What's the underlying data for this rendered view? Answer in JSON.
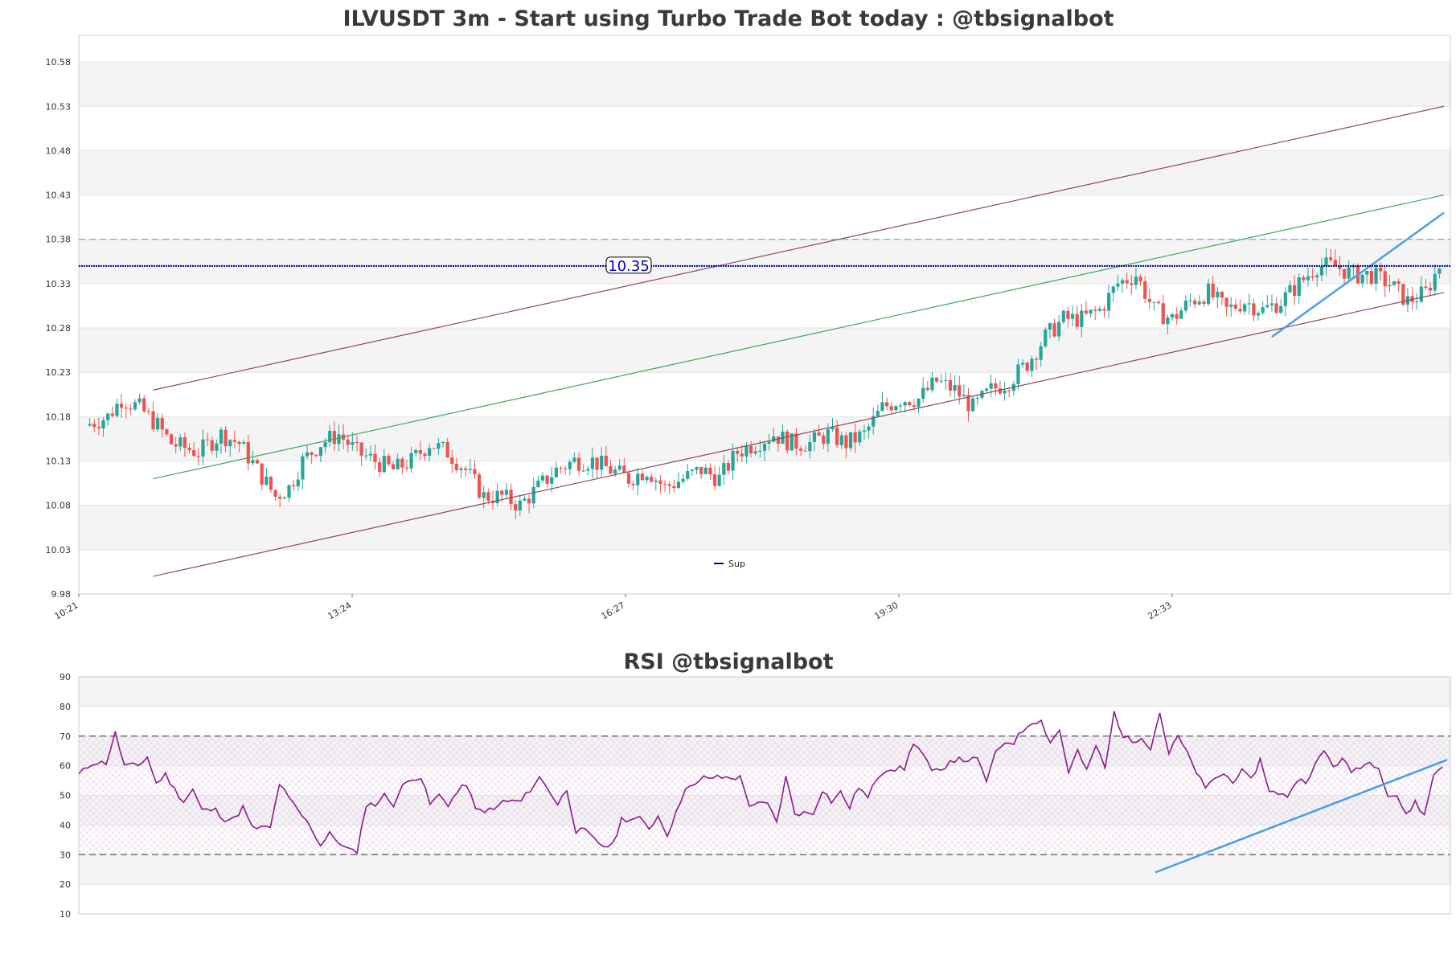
{
  "chart_data": [
    {
      "type": "candlestick",
      "title": "ILVUSDT 3m - Start using Turbo Trade Bot today : @tbsignalbot",
      "ylim": [
        9.98,
        10.61
      ],
      "y_ticks": [
        "9.98",
        "10.03",
        "10.08",
        "10.13",
        "10.18",
        "10.23",
        "10.28",
        "10.33",
        "10.38",
        "10.43",
        "10.48",
        "10.53",
        "10.58"
      ],
      "x_ticks": [
        "10:21",
        "13:24",
        "16:27",
        "19:30",
        "22:33"
      ],
      "n_candles": 300,
      "candle_up_color": "#26a69a",
      "candle_down_color": "#ef5350",
      "close_path": [
        [
          0,
          10.17
        ],
        [
          5,
          10.18
        ],
        [
          8,
          10.2
        ],
        [
          12,
          10.19
        ],
        [
          16,
          10.17
        ],
        [
          19,
          10.15
        ],
        [
          25,
          10.14
        ],
        [
          30,
          10.16
        ],
        [
          34,
          10.15
        ],
        [
          38,
          10.12
        ],
        [
          42,
          10.09
        ],
        [
          45,
          10.1
        ],
        [
          48,
          10.13
        ],
        [
          52,
          10.15
        ],
        [
          56,
          10.16
        ],
        [
          60,
          10.14
        ],
        [
          64,
          10.13
        ],
        [
          68,
          10.12
        ],
        [
          72,
          10.13
        ],
        [
          76,
          10.15
        ],
        [
          80,
          10.14
        ],
        [
          84,
          10.12
        ],
        [
          88,
          10.09
        ],
        [
          92,
          10.09
        ],
        [
          96,
          10.08
        ],
        [
          100,
          10.1
        ],
        [
          104,
          10.12
        ],
        [
          108,
          10.13
        ],
        [
          112,
          10.13
        ],
        [
          116,
          10.12
        ],
        [
          120,
          10.11
        ],
        [
          124,
          10.12
        ],
        [
          128,
          10.1
        ],
        [
          132,
          10.11
        ],
        [
          136,
          10.12
        ],
        [
          140,
          10.11
        ],
        [
          144,
          10.14
        ],
        [
          148,
          10.15
        ],
        [
          152,
          10.16
        ],
        [
          156,
          10.15
        ],
        [
          160,
          10.15
        ],
        [
          164,
          10.16
        ],
        [
          168,
          10.15
        ],
        [
          172,
          10.16
        ],
        [
          176,
          10.19
        ],
        [
          180,
          10.2
        ],
        [
          184,
          10.2
        ],
        [
          188,
          10.22
        ],
        [
          192,
          10.21
        ],
        [
          196,
          10.19
        ],
        [
          200,
          10.21
        ],
        [
          204,
          10.22
        ],
        [
          208,
          10.24
        ],
        [
          212,
          10.27
        ],
        [
          216,
          10.29
        ],
        [
          220,
          10.29
        ],
        [
          224,
          10.3
        ],
        [
          228,
          10.33
        ],
        [
          232,
          10.34
        ],
        [
          236,
          10.3
        ],
        [
          240,
          10.29
        ],
        [
          244,
          10.31
        ],
        [
          248,
          10.32
        ],
        [
          252,
          10.3
        ],
        [
          256,
          10.31
        ],
        [
          260,
          10.3
        ],
        [
          264,
          10.31
        ],
        [
          268,
          10.33
        ],
        [
          272,
          10.35
        ],
        [
          276,
          10.35
        ],
        [
          280,
          10.34
        ],
        [
          284,
          10.34
        ],
        [
          288,
          10.33
        ],
        [
          292,
          10.31
        ],
        [
          296,
          10.32
        ],
        [
          300,
          10.36
        ]
      ],
      "series": [
        {
          "name": "Sup",
          "value": 10.35,
          "color": "#00008b",
          "style": "solid",
          "label": "10.35"
        },
        {
          "name": "resistance_dashed",
          "value": 10.38,
          "color": "#5ab4d6",
          "style": "dashed"
        }
      ],
      "channel_lines": [
        {
          "name": "channel-upper",
          "color": "#8b4a5a",
          "from": [
            15,
            10.21
          ],
          "to": [
            300,
            10.53
          ]
        },
        {
          "name": "channel-middle",
          "color": "#3aa85a",
          "from": [
            15,
            10.11
          ],
          "to": [
            300,
            10.43
          ]
        },
        {
          "name": "channel-lower",
          "color": "#8b4a5a",
          "from": [
            15,
            10.0
          ],
          "to": [
            300,
            10.32
          ]
        },
        {
          "name": "trend-blue",
          "color": "#4a9ee6",
          "from": [
            262,
            10.27
          ],
          "to": [
            300,
            10.41
          ]
        }
      ],
      "legend": {
        "entries": [
          "Sup"
        ],
        "position": "bottom-center"
      }
    },
    {
      "type": "line",
      "title": "RSI @tbsignalbot",
      "ylim": [
        10,
        90
      ],
      "y_ticks": [
        "10",
        "20",
        "30",
        "40",
        "50",
        "60",
        "70",
        "80",
        "90"
      ],
      "reference_lines": [
        70,
        30
      ],
      "n_points": 300,
      "line_color": "#8b1a8b",
      "rsi_path": [
        [
          0,
          57
        ],
        [
          3,
          61
        ],
        [
          6,
          61
        ],
        [
          8,
          71
        ],
        [
          10,
          60
        ],
        [
          13,
          60
        ],
        [
          15,
          63
        ],
        [
          17,
          54
        ],
        [
          19,
          57
        ],
        [
          21,
          52
        ],
        [
          23,
          48
        ],
        [
          25,
          52
        ],
        [
          27,
          45
        ],
        [
          30,
          45
        ],
        [
          32,
          42
        ],
        [
          34,
          42
        ],
        [
          36,
          46
        ],
        [
          38,
          39
        ],
        [
          42,
          39
        ],
        [
          44,
          54
        ],
        [
          46,
          49
        ],
        [
          49,
          43
        ],
        [
          51,
          39
        ],
        [
          53,
          33
        ],
        [
          55,
          38
        ],
        [
          57,
          33
        ],
        [
          59,
          33
        ],
        [
          61,
          30
        ],
        [
          63,
          47
        ],
        [
          65,
          47
        ],
        [
          67,
          50
        ],
        [
          69,
          47
        ],
        [
          71,
          53
        ],
        [
          73,
          56
        ],
        [
          75,
          56
        ],
        [
          77,
          47
        ],
        [
          79,
          50
        ],
        [
          81,
          47
        ],
        [
          83,
          51
        ],
        [
          85,
          54
        ],
        [
          87,
          45
        ],
        [
          91,
          45
        ],
        [
          93,
          48
        ],
        [
          97,
          48
        ],
        [
          99,
          52
        ],
        [
          101,
          56
        ],
        [
          103,
          52
        ],
        [
          105,
          47
        ],
        [
          107,
          52
        ],
        [
          109,
          38
        ],
        [
          111,
          38
        ],
        [
          113,
          35
        ],
        [
          115,
          33
        ],
        [
          117,
          33
        ],
        [
          119,
          42
        ],
        [
          123,
          42
        ],
        [
          125,
          39
        ],
        [
          127,
          43
        ],
        [
          129,
          37
        ],
        [
          131,
          44
        ],
        [
          133,
          53
        ],
        [
          135,
          53
        ],
        [
          137,
          56
        ],
        [
          145,
          56
        ],
        [
          147,
          47
        ],
        [
          151,
          47
        ],
        [
          153,
          41
        ],
        [
          155,
          56
        ],
        [
          157,
          44
        ],
        [
          161,
          44
        ],
        [
          163,
          52
        ],
        [
          165,
          48
        ],
        [
          167,
          51
        ],
        [
          169,
          46
        ],
        [
          171,
          53
        ],
        [
          173,
          49
        ],
        [
          175,
          56
        ],
        [
          177,
          59
        ],
        [
          181,
          59
        ],
        [
          183,
          68
        ],
        [
          185,
          64
        ],
        [
          187,
          58
        ],
        [
          189,
          58
        ],
        [
          191,
          62
        ],
        [
          197,
          62
        ],
        [
          199,
          55
        ],
        [
          201,
          64
        ],
        [
          203,
          68
        ],
        [
          205,
          68
        ],
        [
          207,
          72
        ],
        [
          209,
          75
        ],
        [
          211,
          75
        ],
        [
          213,
          68
        ],
        [
          215,
          72
        ],
        [
          217,
          58
        ],
        [
          219,
          65
        ],
        [
          221,
          58
        ],
        [
          223,
          67
        ],
        [
          225,
          59
        ],
        [
          227,
          78
        ],
        [
          229,
          70
        ],
        [
          231,
          68
        ],
        [
          233,
          70
        ],
        [
          235,
          66
        ],
        [
          237,
          78
        ],
        [
          239,
          64
        ],
        [
          241,
          70
        ],
        [
          243,
          64
        ],
        [
          245,
          58
        ],
        [
          247,
          52
        ],
        [
          249,
          56
        ],
        [
          251,
          57
        ],
        [
          253,
          55
        ],
        [
          255,
          58
        ],
        [
          257,
          55
        ],
        [
          259,
          62
        ],
        [
          261,
          52
        ],
        [
          263,
          50
        ],
        [
          265,
          50
        ],
        [
          267,
          55
        ],
        [
          269,
          55
        ],
        [
          271,
          60
        ],
        [
          273,
          65
        ],
        [
          275,
          60
        ],
        [
          277,
          62
        ],
        [
          279,
          58
        ],
        [
          281,
          60
        ],
        [
          283,
          61
        ],
        [
          285,
          60
        ],
        [
          287,
          50
        ],
        [
          289,
          50
        ],
        [
          291,
          43
        ],
        [
          293,
          48
        ],
        [
          295,
          43
        ],
        [
          297,
          57
        ],
        [
          299,
          60
        ]
      ],
      "trend_line": {
        "from": [
          236,
          24
        ],
        "to": [
          300,
          62
        ]
      }
    }
  ]
}
